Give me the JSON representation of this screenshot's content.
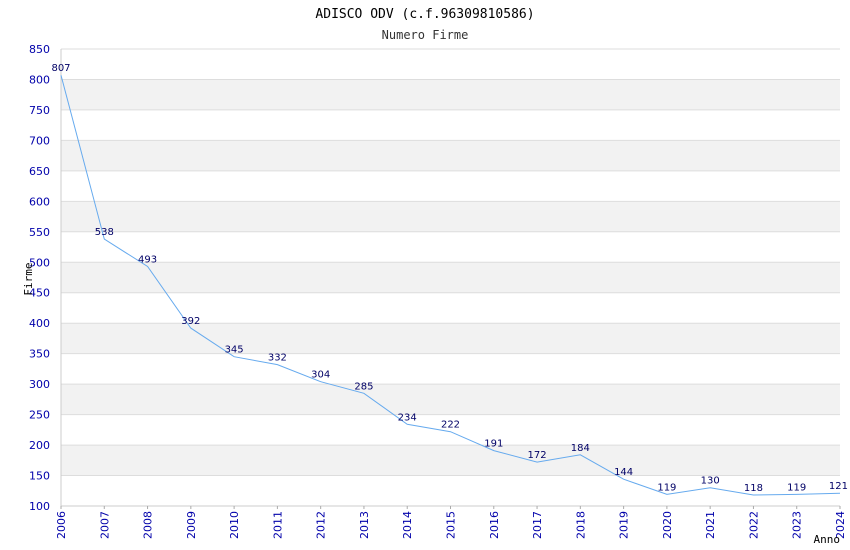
{
  "chart_data": {
    "type": "line",
    "title": "ADISCO ODV (c.f.96309810586)",
    "subtitle": "Numero Firme",
    "xlabel": "Anno",
    "ylabel": "Firme",
    "x": [
      "2006",
      "2007",
      "2008",
      "2009",
      "2010",
      "2011",
      "2012",
      "2013",
      "2014",
      "2015",
      "2016",
      "2017",
      "2018",
      "2019",
      "2020",
      "2021",
      "2022",
      "2023",
      "2024"
    ],
    "values": [
      807,
      538,
      493,
      392,
      345,
      332,
      304,
      285,
      234,
      222,
      191,
      172,
      184,
      144,
      119,
      130,
      118,
      119,
      121
    ],
    "yticks": [
      "100",
      "150",
      "200",
      "250",
      "300",
      "350",
      "400",
      "450",
      "500",
      "550",
      "600",
      "650",
      "700",
      "750",
      "800",
      "850"
    ],
    "ylim": [
      100,
      850
    ],
    "grid": true,
    "colors": {
      "line": "#66aaee",
      "band": "#f2f2f2",
      "tick_text": "#0000aa",
      "data_label": "#000066"
    }
  }
}
